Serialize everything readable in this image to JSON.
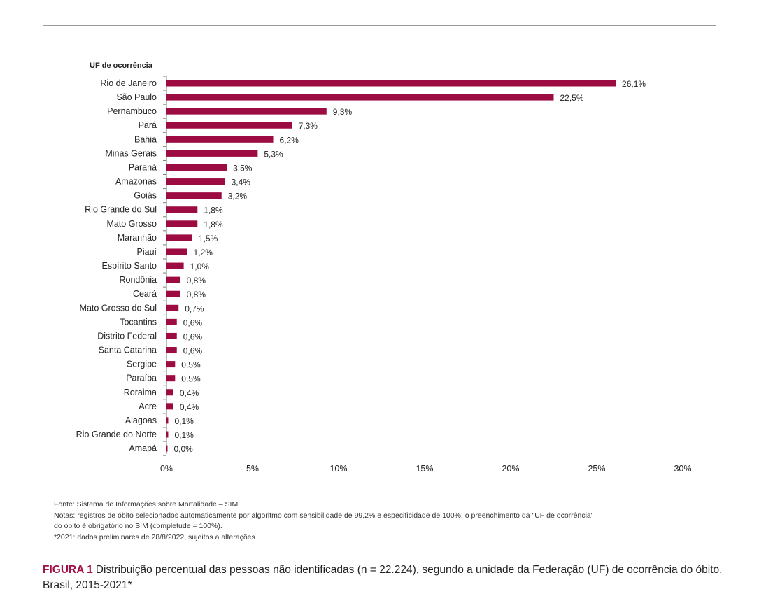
{
  "chart_data": {
    "type": "bar",
    "orientation": "horizontal",
    "yaxis_title": "UF de ocorrência",
    "categories": [
      "Rio de Janeiro",
      "São Paulo",
      "Pernambuco",
      "Pará",
      "Bahia",
      "Minas Gerais",
      "Paraná",
      "Amazonas",
      "Goiás",
      "Rio Grande do Sul",
      "Mato Grosso",
      "Maranhão",
      "Piauí",
      "Espírito Santo",
      "Rondônia",
      "Ceará",
      "Mato Grosso do Sul",
      "Tocantins",
      "Distrito Federal",
      "Santa Catarina",
      "Sergipe",
      "Paraíba",
      "Roraima",
      "Acre",
      "Alagoas",
      "Rio Grande do Norte",
      "Amapá"
    ],
    "values": [
      26.1,
      22.5,
      9.3,
      7.3,
      6.2,
      5.3,
      3.5,
      3.4,
      3.2,
      1.8,
      1.8,
      1.5,
      1.2,
      1.0,
      0.8,
      0.8,
      0.7,
      0.6,
      0.6,
      0.6,
      0.5,
      0.5,
      0.4,
      0.4,
      0.1,
      0.1,
      0.0
    ],
    "value_labels": [
      "26,1%",
      "22,5%",
      "9,3%",
      "7,3%",
      "6,2%",
      "5,3%",
      "3,5%",
      "3,4%",
      "3,2%",
      "1,8%",
      "1,8%",
      "1,5%",
      "1,2%",
      "1,0%",
      "0,8%",
      "0,8%",
      "0,7%",
      "0,6%",
      "0,6%",
      "0,6%",
      "0,5%",
      "0,5%",
      "0,4%",
      "0,4%",
      "0,1%",
      "0,1%",
      "0,0%"
    ],
    "xlim": [
      0,
      30
    ],
    "xticks": [
      0,
      5,
      10,
      15,
      20,
      25,
      30
    ],
    "xtick_labels": [
      "0%",
      "5%",
      "10%",
      "15%",
      "20%",
      "25%",
      "30%"
    ],
    "grid": false,
    "bar_color": "#9c0c42"
  },
  "notes": {
    "source": "Fonte: Sistema de Informações sobre Mortalidade – SIM.",
    "notes_line1": "Notas: registros de óbito selecionados automaticamente por algoritmo com sensibilidade de 99,2% e especificidade de 100%; o preenchimento da \"UF de ocorrência\"",
    "notes_line2": "do óbito é obrigatório no SIM (completude = 100%).",
    "footnote": "*2021: dados preliminares  de 28/8/2022, sujeitos a alterações."
  },
  "caption": {
    "figure_label": "FIGURA 1",
    "text": "Distribuição percentual das pessoas não identificadas (n = 22.224), segundo a unidade da Federação (UF) de ocorrência do óbito, Brasil, 2015-2021*"
  }
}
